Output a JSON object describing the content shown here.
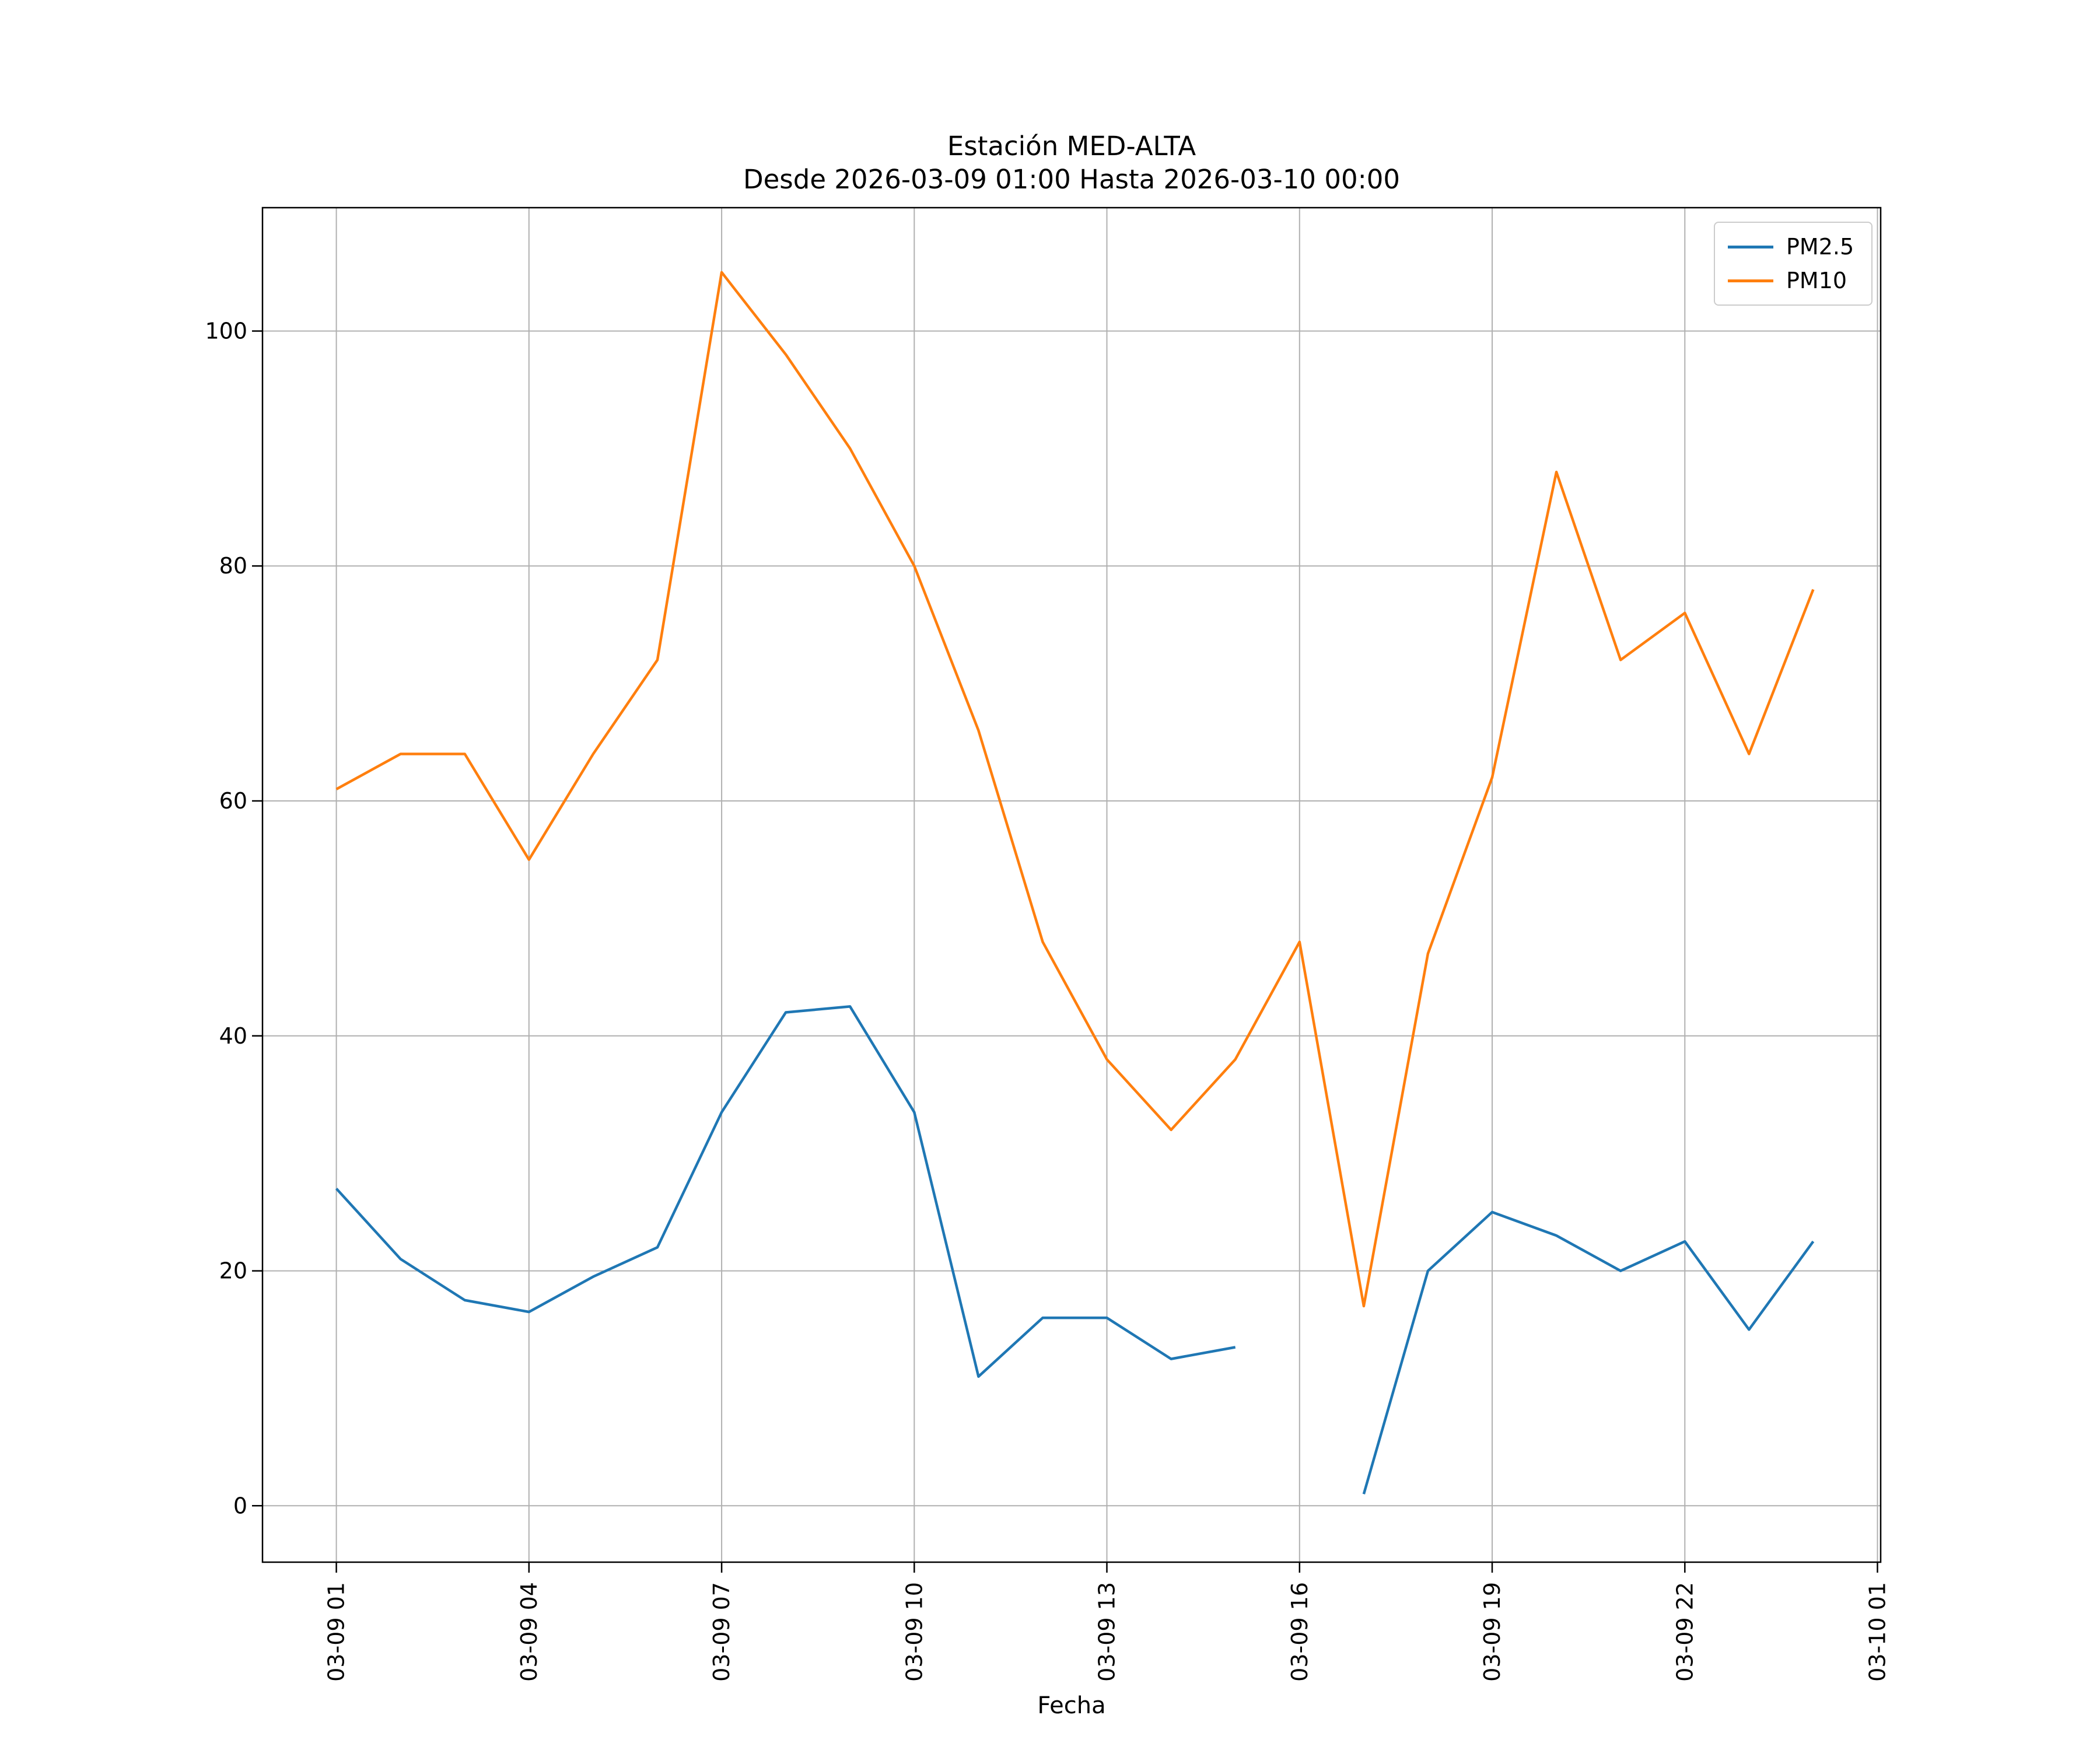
{
  "figure": {
    "background": "#ffffff",
    "axes_frame_color": "#000000"
  },
  "chart_data": {
    "type": "line",
    "title": "Estación MED-ALTA",
    "subtitle": "Desde 2026-03-09 01:00 Hasta 2026-03-10 00:00",
    "xlabel": "Fecha",
    "ylabel": "",
    "x_unit": "hour of 2026-03-09 (1 .. 24, where 24 = 2026-03-10 00:00)",
    "x_hours": [
      1,
      2,
      3,
      4,
      5,
      6,
      7,
      8,
      9,
      10,
      11,
      12,
      13,
      14,
      15,
      16,
      17,
      18,
      19,
      20,
      21,
      22,
      23,
      24
    ],
    "series": [
      {
        "name": "PM2.5",
        "color": "#1f77b4",
        "values": [
          27,
          21,
          17.5,
          16.5,
          19.5,
          22,
          33.5,
          42,
          42.5,
          33.5,
          11,
          16,
          16,
          12.5,
          13.5,
          null,
          1,
          20,
          25,
          23,
          20,
          22.5,
          15,
          22.5
        ]
      },
      {
        "name": "PM10",
        "color": "#ff7f0e",
        "values": [
          61,
          64,
          64,
          55,
          64,
          72,
          105,
          98,
          90,
          80,
          66,
          48,
          38,
          32,
          38,
          48,
          17,
          47,
          62,
          88,
          72,
          76,
          64,
          78
        ]
      }
    ],
    "xticks": {
      "hours": [
        1,
        4,
        7,
        10,
        13,
        16,
        19,
        22,
        25
      ],
      "labels": [
        "03-09 01",
        "03-09 04",
        "03-09 07",
        "03-09 10",
        "03-09 13",
        "03-09 16",
        "03-09 19",
        "03-09 22",
        "03-10 01"
      ],
      "rotation": 90
    },
    "yticks": [
      0,
      20,
      40,
      60,
      80,
      100
    ],
    "xlim": [
      -0.15,
      25.05
    ],
    "ylim": [
      -4.8,
      110.5
    ],
    "grid": true,
    "grid_color": "#b0b0b0",
    "legend_position": "upper right"
  }
}
